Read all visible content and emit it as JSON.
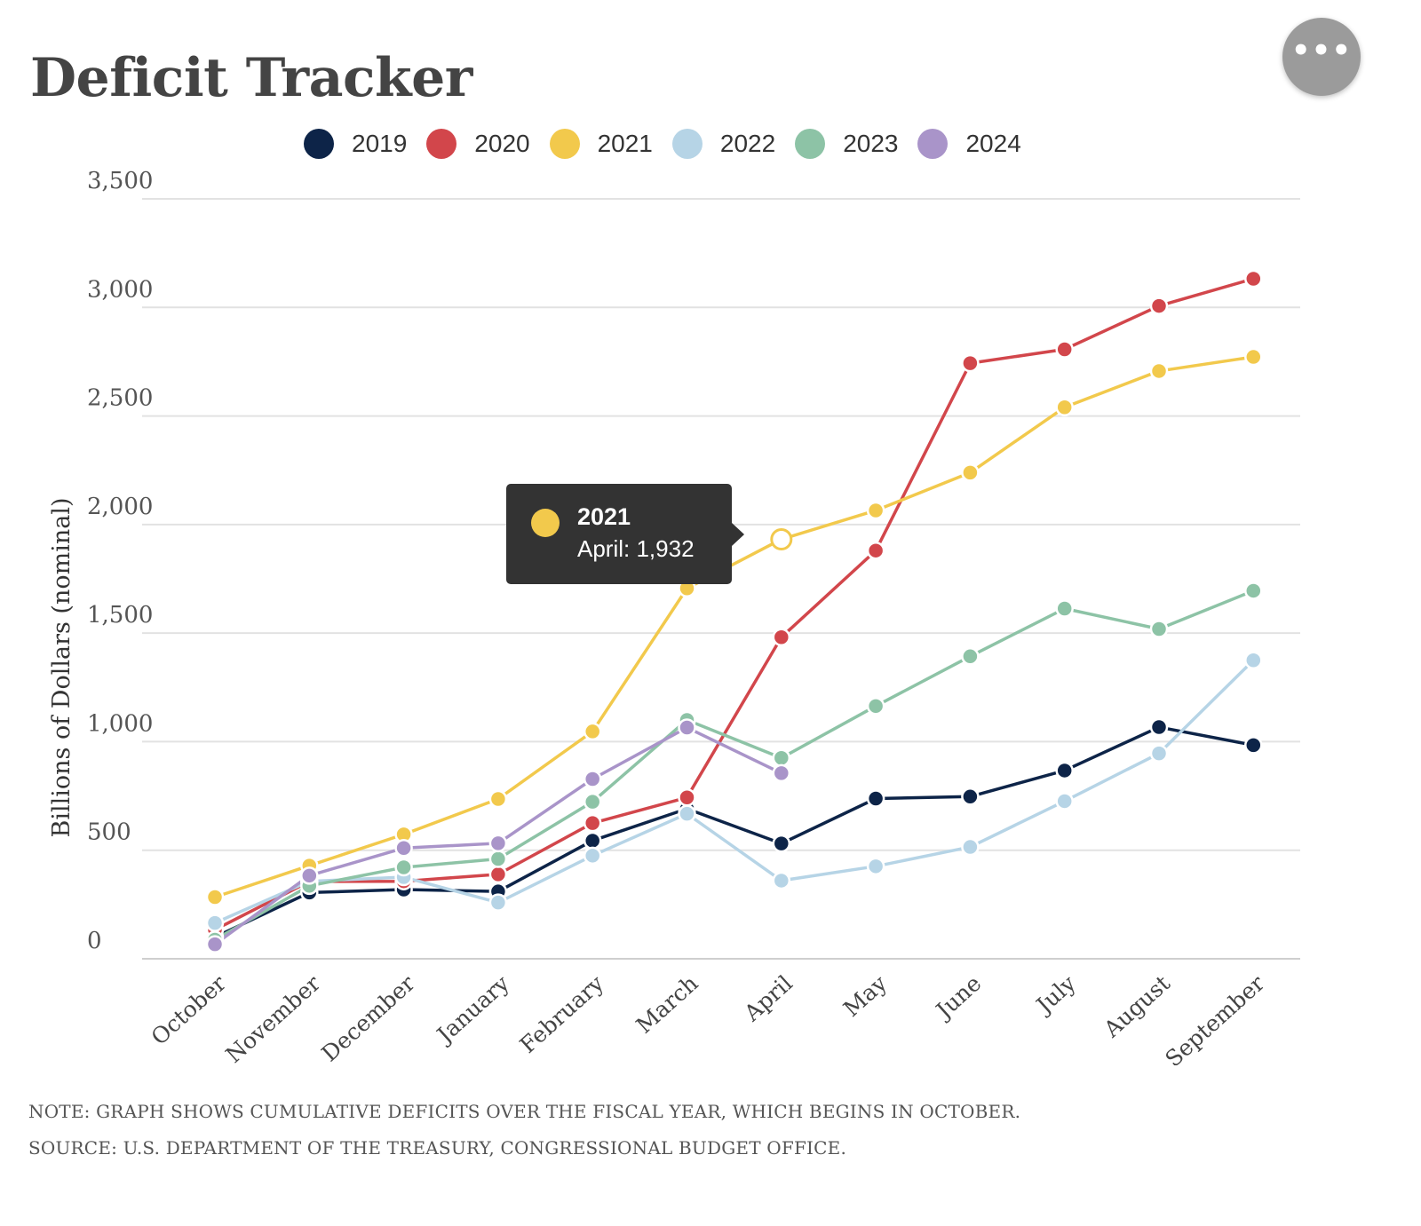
{
  "header": {
    "title": "Deficit Tracker",
    "menu_label": "•••"
  },
  "tooltip": {
    "series": "2021",
    "value_text": "April: 1,932",
    "color": "#f2c94c"
  },
  "notes": {
    "note": "NOTE: GRAPH SHOWS CUMULATIVE DEFICITS OVER THE FISCAL YEAR, WHICH BEGINS IN OCTOBER.",
    "source": "SOURCE: U.S. DEPARTMENT OF THE TREASURY, CONGRESSIONAL BUDGET OFFICE."
  },
  "chart_data": {
    "type": "line",
    "title": "Deficit Tracker",
    "xlabel": "",
    "ylabel": "Billions of Dollars (nominal)",
    "ylim": [
      0,
      3500
    ],
    "yticks": [
      0,
      500,
      1000,
      1500,
      2000,
      2500,
      3000,
      3500
    ],
    "ytick_labels": [
      "0",
      "500",
      "1,000",
      "1,500",
      "2,000",
      "2,500",
      "3,000",
      "3,500"
    ],
    "grid": true,
    "legend_position": "top",
    "categories": [
      "October",
      "November",
      "December",
      "January",
      "February",
      "March",
      "April",
      "May",
      "June",
      "July",
      "August",
      "September"
    ],
    "highlight": {
      "series": "2021",
      "category": "April",
      "value": 1932
    },
    "series": [
      {
        "name": "2019",
        "color": "#0d2448",
        "values": [
          100,
          305,
          319,
          310,
          544,
          691,
          531,
          738,
          747,
          867,
          1067,
          984
        ]
      },
      {
        "name": "2020",
        "color": "#d2464b",
        "values": [
          134,
          356,
          357,
          389,
          625,
          743,
          1481,
          1880,
          2743,
          2807,
          3007,
          3132
        ]
      },
      {
        "name": "2021",
        "color": "#f2c94c",
        "values": [
          284,
          429,
          573,
          736,
          1047,
          1706,
          1932,
          2065,
          2239,
          2540,
          2707,
          2772
        ]
      },
      {
        "name": "2022",
        "color": "#b6d4e6",
        "values": [
          165,
          357,
          376,
          259,
          475,
          668,
          360,
          426,
          515,
          726,
          946,
          1375
        ]
      },
      {
        "name": "2023",
        "color": "#8dc3a6",
        "values": [
          88,
          336,
          421,
          460,
          723,
          1100,
          925,
          1164,
          1393,
          1613,
          1519,
          1695
        ]
      },
      {
        "name": "2024",
        "color": "#a994c9",
        "values": [
          67,
          383,
          510,
          532,
          828,
          1065,
          855,
          null,
          null,
          null,
          null,
          null
        ]
      }
    ]
  }
}
